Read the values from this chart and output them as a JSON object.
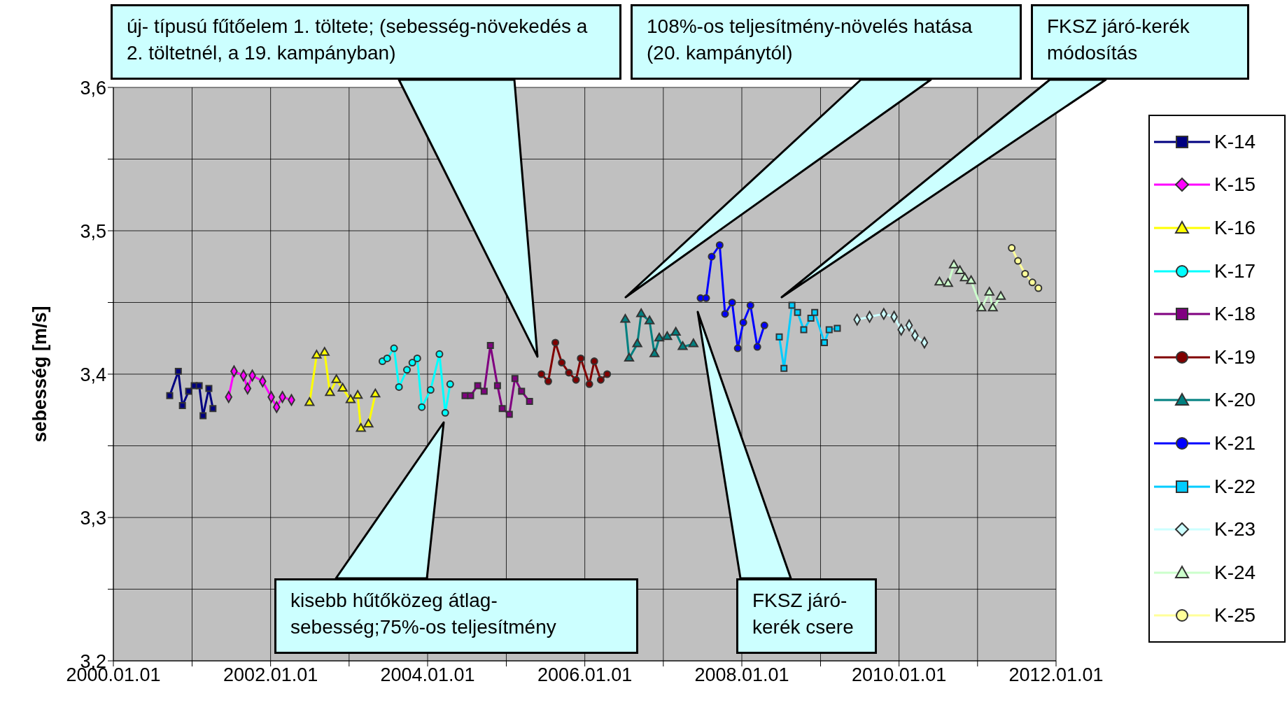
{
  "chart_data": {
    "type": "line",
    "ylabel": "sebesség [m/s]",
    "xlim": [
      "2000-01-01",
      "2012-01-01"
    ],
    "ylim": [
      3.2,
      3.6
    ],
    "xticks": [
      {
        "value": "2000-01-01",
        "label": "2000.01.01"
      },
      {
        "value": "2001-01-01",
        "label": null
      },
      {
        "value": "2002-01-01",
        "label": "2002.01.01"
      },
      {
        "value": "2003-01-01",
        "label": null
      },
      {
        "value": "2004-01-01",
        "label": "2004.01.01"
      },
      {
        "value": "2005-01-01",
        "label": null
      },
      {
        "value": "2006-01-01",
        "label": "2006.01.01"
      },
      {
        "value": "2007-01-01",
        "label": null
      },
      {
        "value": "2008-01-01",
        "label": "2008.01.01"
      },
      {
        "value": "2009-01-01",
        "label": null
      },
      {
        "value": "2010-01-01",
        "label": "2010.01.01"
      },
      {
        "value": "2011-01-01",
        "label": null
      },
      {
        "value": "2012-01-01",
        "label": "2012.01.01"
      }
    ],
    "yticks": [
      {
        "value": 3.2,
        "label": "3,2"
      },
      {
        "value": 3.25,
        "label": null
      },
      {
        "value": 3.3,
        "label": "3,3"
      },
      {
        "value": 3.35,
        "label": null
      },
      {
        "value": 3.4,
        "label": "3,4"
      },
      {
        "value": 3.45,
        "label": null
      },
      {
        "value": 3.5,
        "label": "3,5"
      },
      {
        "value": 3.55,
        "label": null
      },
      {
        "value": 3.6,
        "label": "3,6"
      }
    ],
    "grid": true,
    "legend": "right",
    "annotations": [
      "új- típusú fűtőelem 1. töltete; (sebesség-növekedés a 2. töltetnél, a 19. kampányban)",
      "108%-os teljesítmény-növelés hatása (20. kampánytól)",
      "FKSZ járó-kerék módosítás",
      "kisebb hűtőközeg átlag-sebesség;75%-os teljesítmény",
      "FKSZ járó-kerék csere"
    ],
    "series": [
      {
        "name": "K-14",
        "color": "#000080",
        "marker": "square",
        "x": [
          "2000-09-19",
          "2000-10-29",
          "2000-11-17",
          "2000-12-16",
          "2001-01-11",
          "2001-02-03",
          "2001-02-21",
          "2001-03-20",
          "2001-04-08"
        ],
        "values": [
          3.385,
          3.402,
          3.378,
          3.388,
          3.392,
          3.392,
          3.371,
          3.39,
          3.376
        ]
      },
      {
        "name": "K-15",
        "color": "#ff00ff",
        "marker": "diamond",
        "x": [
          "2001-06-20",
          "2001-07-15",
          "2001-08-28",
          "2001-09-16",
          "2001-10-08",
          "2001-11-25",
          "2002-01-04",
          "2002-01-29",
          "2002-02-25",
          "2002-04-08"
        ],
        "values": [
          3.384,
          3.402,
          3.399,
          3.39,
          3.399,
          3.395,
          3.384,
          3.377,
          3.384,
          3.382
        ]
      },
      {
        "name": "K-16",
        "color": "#ffff00",
        "marker": "triangle",
        "x": [
          "2002-07-01",
          "2002-08-03",
          "2002-09-09",
          "2002-10-04",
          "2002-11-03",
          "2002-12-02",
          "2003-01-08",
          "2003-02-10",
          "2003-02-25",
          "2003-04-01",
          "2003-05-03"
        ],
        "values": [
          3.38,
          3.413,
          3.415,
          3.387,
          3.396,
          3.39,
          3.382,
          3.385,
          3.362,
          3.365,
          3.386
        ]
      },
      {
        "name": "K-17",
        "color": "#00ffff",
        "marker": "circle",
        "x": [
          "2003-06-05",
          "2003-06-27",
          "2003-07-29",
          "2003-08-21",
          "2003-09-27",
          "2003-10-22",
          "2003-11-14",
          "2003-12-05",
          "2004-01-15",
          "2004-02-25",
          "2004-03-23",
          "2004-04-15"
        ],
        "values": [
          3.409,
          3.411,
          3.418,
          3.391,
          3.403,
          3.408,
          3.411,
          3.377,
          3.389,
          3.414,
          3.373,
          3.393
        ]
      },
      {
        "name": "K-18",
        "color": "#800080",
        "marker": "square",
        "x": [
          "2004-06-23",
          "2004-07-19",
          "2004-08-21",
          "2004-09-20",
          "2004-10-19",
          "2004-11-21",
          "2004-12-13",
          "2005-01-15",
          "2005-02-10",
          "2005-03-13",
          "2005-04-19"
        ],
        "values": [
          3.385,
          3.385,
          3.392,
          3.388,
          3.42,
          3.392,
          3.376,
          3.372,
          3.397,
          3.388,
          3.381
        ]
      },
      {
        "name": "K-19",
        "color": "#800000",
        "marker": "circle",
        "x": [
          "2005-06-13",
          "2005-07-15",
          "2005-08-17",
          "2005-09-16",
          "2005-10-19",
          "2005-11-21",
          "2005-12-13",
          "2006-01-22",
          "2006-02-14",
          "2006-03-16",
          "2006-04-15"
        ],
        "values": [
          3.4,
          3.395,
          3.422,
          3.408,
          3.401,
          3.396,
          3.411,
          3.393,
          3.409,
          3.396,
          3.4
        ]
      },
      {
        "name": "K-20",
        "color": "#008080",
        "marker": "triangle",
        "x": [
          "2006-07-08",
          "2006-07-26",
          "2006-09-02",
          "2006-09-20",
          "2006-10-29",
          "2006-11-21",
          "2006-12-13",
          "2007-01-19",
          "2007-02-28",
          "2007-04-01",
          "2007-05-21"
        ],
        "values": [
          3.438,
          3.411,
          3.421,
          3.442,
          3.437,
          3.414,
          3.425,
          3.426,
          3.429,
          3.419,
          3.421
        ]
      },
      {
        "name": "K-21",
        "color": "#0000ff",
        "marker": "circle",
        "x": [
          "2007-06-23",
          "2007-07-19",
          "2007-08-14",
          "2007-09-20",
          "2007-10-15",
          "2007-11-17",
          "2007-12-13",
          "2008-01-08",
          "2008-02-10",
          "2008-03-13",
          "2008-04-15"
        ],
        "values": [
          3.453,
          3.453,
          3.482,
          3.49,
          3.442,
          3.45,
          3.418,
          3.436,
          3.448,
          3.419,
          3.434
        ]
      },
      {
        "name": "K-22",
        "color": "#00ccff",
        "marker": "square",
        "x": [
          "2008-06-23",
          "2008-07-15",
          "2008-08-21",
          "2008-09-16",
          "2008-10-15",
          "2008-11-17",
          "2008-12-05",
          "2009-01-19",
          "2009-02-10",
          "2009-03-20"
        ],
        "values": [
          3.426,
          3.404,
          3.448,
          3.443,
          3.431,
          3.439,
          3.443,
          3.422,
          3.431,
          3.432
        ]
      },
      {
        "name": "K-23",
        "color": "#ccffff",
        "marker": "diamond",
        "x": [
          "2009-06-20",
          "2009-08-17",
          "2009-10-22",
          "2009-12-09",
          "2010-01-11",
          "2010-02-17",
          "2010-03-16",
          "2010-04-29"
        ],
        "values": [
          3.438,
          3.44,
          3.442,
          3.44,
          3.431,
          3.434,
          3.427,
          3.422
        ]
      },
      {
        "name": "K-24",
        "color": "#ccffcc",
        "marker": "triangle",
        "x": [
          "2010-07-08",
          "2010-08-17",
          "2010-09-13",
          "2010-10-11",
          "2010-11-03",
          "2010-12-02",
          "2011-01-19",
          "2011-02-25",
          "2011-03-13",
          "2011-04-19"
        ],
        "values": [
          3.464,
          3.463,
          3.476,
          3.472,
          3.467,
          3.465,
          3.446,
          3.457,
          3.446,
          3.454
        ]
      },
      {
        "name": "K-25",
        "color": "#ffff99",
        "marker": "circle",
        "x": [
          "2011-06-09",
          "2011-07-08",
          "2011-08-10",
          "2011-09-13",
          "2011-10-11"
        ],
        "values": [
          3.488,
          3.479,
          3.47,
          3.464,
          3.46
        ]
      }
    ]
  }
}
